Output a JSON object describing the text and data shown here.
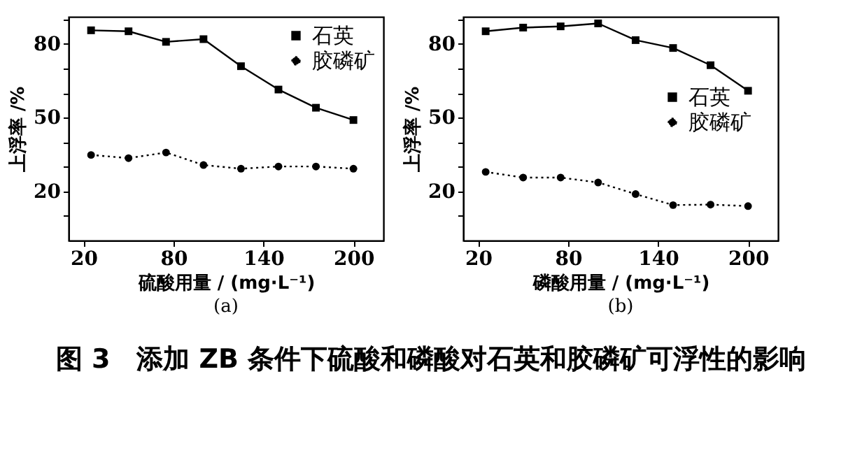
{
  "chart_data": [
    {
      "type": "line",
      "subtitle": "(a)",
      "xlabel": "硫酸用量 / (mg·L⁻¹)",
      "ylabel": "上浮率 /%",
      "annotations": [
        "图 3　添加 ZB 条件下硫酸和磷酸对石英和胶磷矿可浮性的影响"
      ],
      "x": [
        25,
        50,
        75,
        100,
        125,
        150,
        175,
        200
      ],
      "series": [
        {
          "name": "石英",
          "color": "#000000",
          "marker": "square",
          "line_style": "solid",
          "values": [
            85.5,
            85.1,
            80.8,
            81.9,
            70.9,
            61.4,
            54,
            49
          ]
        },
        {
          "name": "胶磷矿",
          "color": "#000000",
          "marker": "circle",
          "line_style": "dotted",
          "values": [
            34.8,
            33.5,
            35.8,
            30.7,
            29.2,
            30.1,
            30.1,
            29.2
          ]
        }
      ],
      "xlim": [
        10,
        220
      ],
      "xticks": [
        20,
        80,
        140,
        200
      ],
      "ylim": [
        0,
        91
      ],
      "yticks": [
        {
          "value": 10,
          "label": null
        },
        20,
        {
          "value": 30,
          "label": null
        },
        {
          "value": 40,
          "label": null
        },
        50,
        {
          "value": 60,
          "label": null
        },
        {
          "value": 70,
          "label": null
        },
        80,
        {
          "value": 90,
          "label": null
        }
      ],
      "grid": false,
      "legend": "top right"
    },
    {
      "type": "line",
      "subtitle": "(b)",
      "xlabel": "磷酸用量 / (mg·L⁻¹)",
      "ylabel": "上浮率 /%",
      "x": [
        25,
        50,
        75,
        100,
        125,
        150,
        175,
        200
      ],
      "series": [
        {
          "name": "石英",
          "color": "#000000",
          "marker": "square",
          "line_style": "solid",
          "values": [
            85.1,
            86.6,
            87.1,
            88.3,
            81.5,
            78.3,
            71.3,
            60.9
          ]
        },
        {
          "name": "胶磷矿",
          "color": "#000000",
          "marker": "circle",
          "line_style": "dotted",
          "values": [
            27.9,
            25.6,
            25.6,
            23.6,
            18.9,
            14.4,
            14.6,
            14
          ]
        }
      ],
      "xlim": [
        10,
        220
      ],
      "xticks": [
        20,
        80,
        140,
        200
      ],
      "ylim": [
        0,
        91
      ],
      "yticks": [
        {
          "value": 10,
          "label": null
        },
        20,
        {
          "value": 30,
          "label": null
        },
        {
          "value": 40,
          "label": null
        },
        50,
        {
          "value": 60,
          "label": null
        },
        {
          "value": 70,
          "label": null
        },
        80,
        {
          "value": 90,
          "label": null
        }
      ],
      "grid": false,
      "legend": "right"
    }
  ]
}
